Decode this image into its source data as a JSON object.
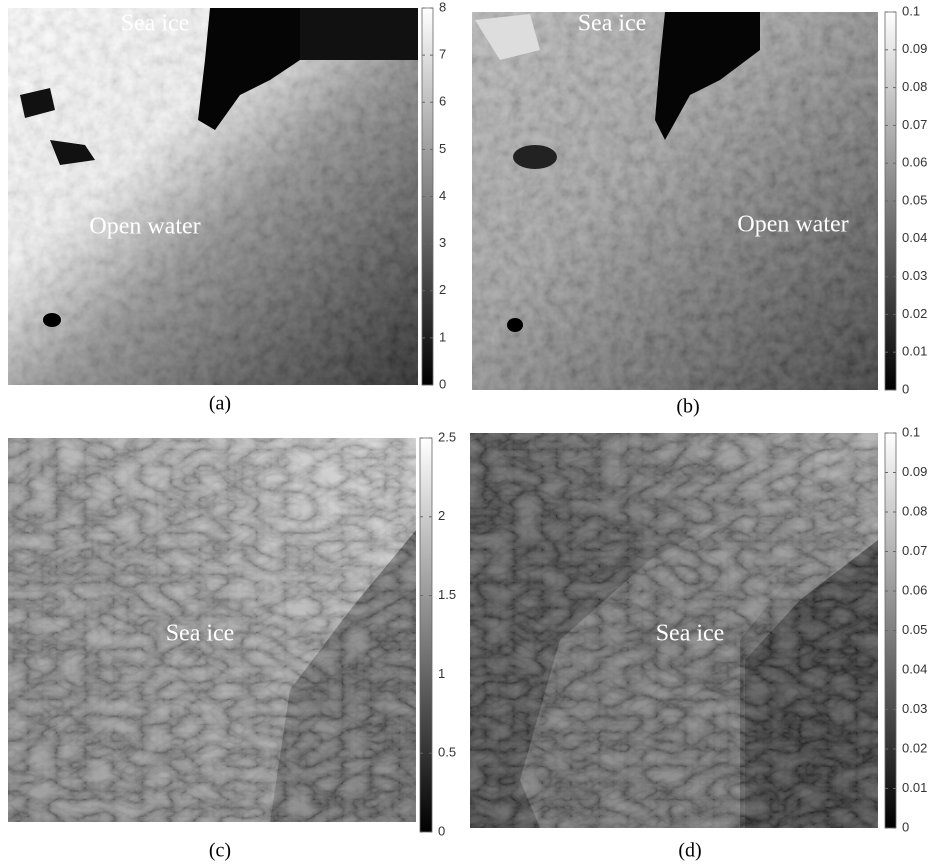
{
  "panels": [
    {
      "label": "(a)",
      "annotations": [
        "Sea ice",
        "Open water"
      ],
      "colorbar": {
        "lim": [
          0,
          8
        ],
        "ticks": [
          0,
          1,
          2,
          3,
          4,
          5,
          6,
          7,
          8
        ]
      }
    },
    {
      "label": "(b)",
      "annotations": [
        "Sea ice",
        "Open water"
      ],
      "colorbar": {
        "lim": [
          0,
          0.1
        ],
        "ticks": [
          0,
          0.01,
          0.02,
          0.03,
          0.04,
          0.05,
          0.06,
          0.07,
          0.08,
          0.09,
          0.1
        ]
      }
    },
    {
      "label": "(c)",
      "annotations": [
        "Sea ice"
      ],
      "colorbar": {
        "lim": [
          0,
          2.5
        ],
        "ticks": [
          0,
          0.5,
          1,
          1.5,
          2,
          2.5
        ]
      }
    },
    {
      "label": "(d)",
      "annotations": [
        "Sea ice"
      ],
      "colorbar": {
        "lim": [
          0,
          0.1
        ],
        "ticks": [
          0,
          0.01,
          0.02,
          0.03,
          0.04,
          0.05,
          0.06,
          0.07,
          0.08,
          0.09,
          0.1
        ]
      }
    }
  ]
}
